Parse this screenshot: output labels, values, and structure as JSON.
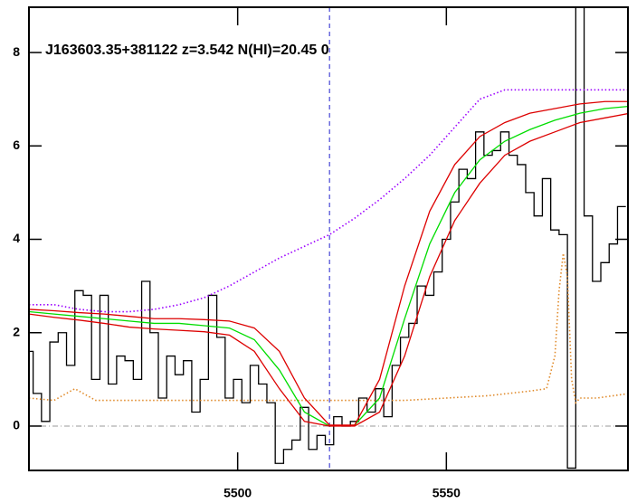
{
  "chart_data": {
    "type": "line",
    "title": "J163603.35+381122 z=3.542 N(HI)=20.45 0",
    "xlim": [
      5450,
      5593.5
    ],
    "ylim": [
      -0.95,
      8.97
    ],
    "xticks": [
      5500,
      5550
    ],
    "yticks": [
      0,
      2,
      4,
      6,
      8
    ],
    "vline": 5522,
    "hline": 0,
    "series": [
      {
        "color": "#000000",
        "style": "step",
        "x": [
          5450,
          5452,
          5454,
          5456,
          5458,
          5460,
          5462,
          5464,
          5466,
          5468,
          5470,
          5472,
          5474,
          5476,
          5478,
          5480,
          5482,
          5484,
          5486,
          5488,
          5490,
          5492,
          5494,
          5496,
          5498,
          5500,
          5502,
          5504,
          5506,
          5508,
          5510,
          5512,
          5514,
          5516,
          5518,
          5520,
          5522,
          5524,
          5526,
          5528,
          5530,
          5532,
          5534,
          5536,
          5538,
          5540,
          5542,
          5544,
          5546,
          5548,
          5550,
          5552,
          5554,
          5556,
          5558,
          5560,
          5562,
          5564,
          5566,
          5568,
          5570,
          5572,
          5574,
          5576,
          5578,
          5580,
          5582,
          5584,
          5586,
          5588,
          5590,
          5592
        ],
        "values": [
          1.6,
          0.7,
          0.1,
          1.8,
          2.0,
          1.3,
          2.9,
          2.8,
          1.0,
          2.8,
          0.9,
          1.5,
          1.4,
          1.0,
          3.1,
          2.0,
          0.6,
          1.5,
          1.1,
          1.4,
          0.3,
          1.0,
          2.8,
          1.9,
          0.6,
          1.0,
          0.5,
          1.3,
          0.9,
          0.5,
          -0.8,
          -0.5,
          -0.3,
          0.4,
          -0.5,
          -0.2,
          -0.4,
          0.2,
          0.0,
          0.1,
          0.6,
          0.3,
          0.8,
          0.2,
          1.3,
          1.9,
          2.2,
          3.0,
          2.8,
          3.3,
          4.0,
          4.8,
          5.5,
          5.3,
          6.3,
          5.8,
          5.9,
          6.3,
          5.8,
          5.6,
          5.0,
          4.5,
          5.3,
          4.2,
          4.1,
          -0.9,
          9.5,
          4.5,
          3.1,
          3.5,
          3.9,
          4.7
        ]
      },
      {
        "color": "#e08a2a",
        "style": "dotted",
        "x": [
          5450,
          5456,
          5461,
          5466,
          5480,
          5500,
          5520,
          5540,
          5560,
          5570,
          5574,
          5576,
          5577,
          5578,
          5579,
          5580,
          5581,
          5582,
          5586,
          5594
        ],
        "values": [
          0.6,
          0.55,
          0.8,
          0.55,
          0.55,
          0.55,
          0.55,
          0.55,
          0.65,
          0.75,
          0.8,
          1.5,
          2.9,
          3.7,
          3.2,
          1.0,
          0.5,
          0.6,
          0.6,
          0.7
        ]
      },
      {
        "color": "#9b00ff",
        "style": "dotted",
        "x": [
          5450,
          5456,
          5462,
          5468,
          5474,
          5480,
          5486,
          5492,
          5498,
          5504,
          5510,
          5516,
          5522,
          5528,
          5534,
          5540,
          5546,
          5552,
          5558,
          5564,
          5570,
          5576,
          5582,
          5588,
          5594
        ],
        "values": [
          2.6,
          2.6,
          2.5,
          2.45,
          2.45,
          2.5,
          2.6,
          2.75,
          3.0,
          3.3,
          3.6,
          3.85,
          4.1,
          4.45,
          4.85,
          5.3,
          5.8,
          6.4,
          7.0,
          7.2,
          7.2,
          7.2,
          7.2,
          7.2,
          7.2
        ]
      },
      {
        "color": "#00dd00",
        "style": "solid",
        "x": [
          5450,
          5456,
          5462,
          5468,
          5474,
          5480,
          5486,
          5492,
          5498,
          5504,
          5510,
          5516,
          5522,
          5528,
          5534,
          5540,
          5546,
          5552,
          5558,
          5564,
          5570,
          5576,
          5582,
          5588,
          5594
        ],
        "values": [
          2.45,
          2.4,
          2.35,
          2.3,
          2.25,
          2.2,
          2.2,
          2.15,
          2.1,
          1.85,
          1.2,
          0.3,
          0.0,
          0.02,
          0.6,
          2.3,
          3.9,
          5.0,
          5.7,
          6.1,
          6.35,
          6.55,
          6.7,
          6.8,
          6.85
        ]
      },
      {
        "color": "#dd0000",
        "style": "solid",
        "x": [
          5450,
          5456,
          5462,
          5468,
          5474,
          5480,
          5486,
          5492,
          5498,
          5504,
          5510,
          5516,
          5522,
          5528,
          5534,
          5540,
          5546,
          5552,
          5558,
          5564,
          5570,
          5576,
          5582,
          5588,
          5594
        ],
        "values": [
          2.5,
          2.47,
          2.43,
          2.4,
          2.35,
          2.3,
          2.3,
          2.28,
          2.25,
          2.1,
          1.6,
          0.6,
          0.02,
          0.02,
          1.0,
          3.0,
          4.6,
          5.6,
          6.2,
          6.5,
          6.7,
          6.8,
          6.9,
          6.95,
          6.95
        ]
      },
      {
        "color": "#dd0000",
        "style": "solid",
        "x": [
          5450,
          5456,
          5462,
          5468,
          5474,
          5480,
          5486,
          5492,
          5498,
          5504,
          5510,
          5516,
          5522,
          5528,
          5534,
          5540,
          5546,
          5552,
          5558,
          5564,
          5570,
          5576,
          5582,
          5588,
          5594
        ],
        "values": [
          2.4,
          2.33,
          2.27,
          2.2,
          2.12,
          2.08,
          2.05,
          2.02,
          1.95,
          1.6,
          0.8,
          0.1,
          0.0,
          0.0,
          0.3,
          1.5,
          3.2,
          4.4,
          5.2,
          5.8,
          6.1,
          6.3,
          6.5,
          6.6,
          6.7
        ]
      }
    ]
  }
}
